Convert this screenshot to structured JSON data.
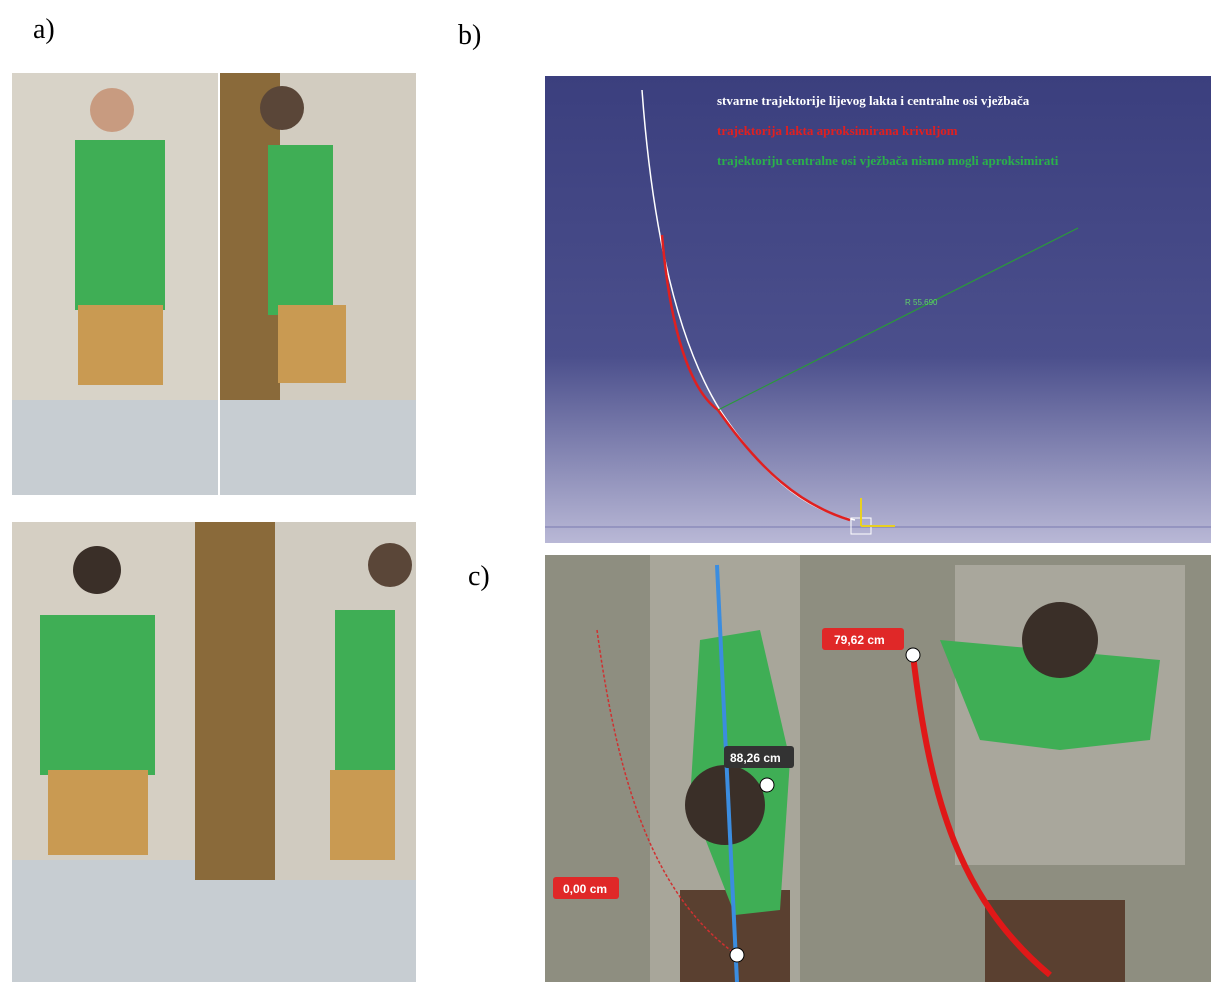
{
  "panels": {
    "a": {
      "label": "a)"
    },
    "b": {
      "label": "b)",
      "legend": [
        "stvarne trajektorije lijevog lakta i centralne osi vježbača",
        "trajektorija lakta aproksimirana krivuljom",
        "trajektoriju centralne osi vježbača nismo mogli aproksimirati"
      ],
      "radius_label": "R 55.690"
    },
    "c": {
      "label": "c)",
      "measurements": [
        "79,62 cm",
        "88,26 cm",
        "0,00 cm"
      ]
    }
  }
}
